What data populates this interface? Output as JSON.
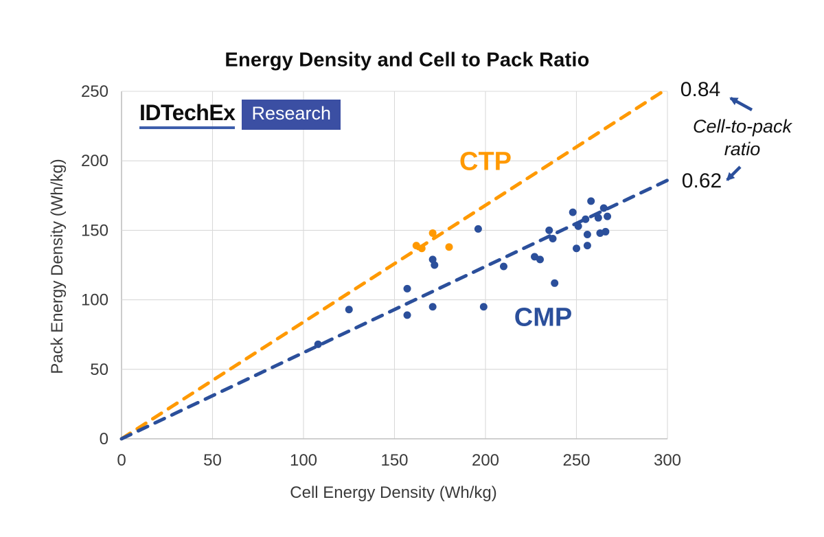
{
  "page": {
    "title": "Energy Density and Cell to Pack Ratio"
  },
  "logo": {
    "brand": "IDTechEx",
    "badge": "Research"
  },
  "chart_data": {
    "type": "scatter",
    "title": "Energy Density and Cell to Pack Ratio",
    "xlabel": "Cell Energy Density (Wh/kg)",
    "ylabel": "Pack Energy Density (Wh/kg)",
    "xlim": [
      0,
      300
    ],
    "ylim": [
      0,
      250
    ],
    "xticks": [
      0,
      50,
      100,
      150,
      200,
      250,
      300
    ],
    "yticks": [
      0,
      50,
      100,
      150,
      200,
      250
    ],
    "grid": true,
    "legend_position": "inline-labels",
    "series": [
      {
        "name": "CTP",
        "color": "#FF9900",
        "trend_slope": 0.84,
        "ratio_label": "0.84",
        "label_pos": [
          200,
          199
        ],
        "points": [
          [
            162,
            139
          ],
          [
            165,
            137
          ],
          [
            171,
            148
          ],
          [
            180,
            138
          ]
        ]
      },
      {
        "name": "CMP",
        "color": "#2B4F9B",
        "trend_slope": 0.62,
        "ratio_label": "0.62",
        "label_pos": [
          232,
          87
        ],
        "points": [
          [
            108,
            68
          ],
          [
            125,
            93
          ],
          [
            157,
            89
          ],
          [
            157,
            108
          ],
          [
            171,
            95
          ],
          [
            171,
            129
          ],
          [
            172,
            125
          ],
          [
            196,
            151
          ],
          [
            199,
            95
          ],
          [
            210,
            124
          ],
          [
            227,
            131
          ],
          [
            230,
            129
          ],
          [
            235,
            150
          ],
          [
            237,
            144
          ],
          [
            238,
            112
          ],
          [
            248,
            163
          ],
          [
            250,
            137
          ],
          [
            251,
            153
          ],
          [
            255,
            158
          ],
          [
            256,
            139
          ],
          [
            256,
            147
          ],
          [
            258,
            171
          ],
          [
            262,
            159
          ],
          [
            263,
            148
          ],
          [
            265,
            166
          ],
          [
            266,
            149
          ],
          [
            267,
            160
          ]
        ]
      }
    ],
    "annotation": {
      "caption_line1": "Cell-to-pack",
      "caption_line2": "ratio"
    }
  },
  "colors": {
    "ctp": "#FF9900",
    "cmp": "#2B4F9B",
    "grid": "#D9D9D9",
    "axis": "#BFBFBF",
    "tick_text": "#3A3A3A",
    "badge_bg": "#3B4FA3",
    "brand_underline": "#3D5EAC",
    "arrow": "#2B4F9B"
  }
}
